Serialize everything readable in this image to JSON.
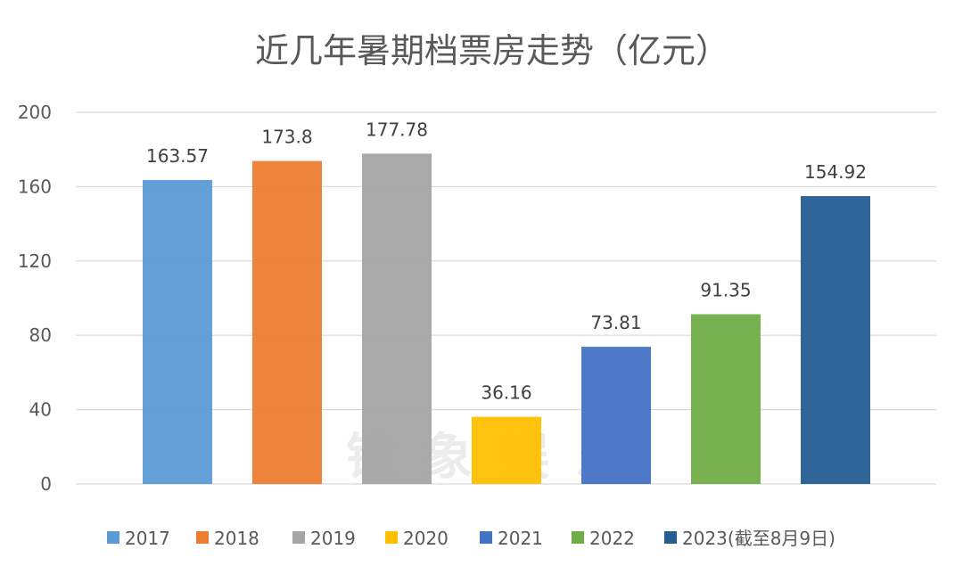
{
  "watermark": "镜象娱乐",
  "chart_data": {
    "type": "bar",
    "title": "近几年暑期档票房走势（亿元）",
    "xlabel": "",
    "ylabel": "",
    "ylim": [
      0,
      200
    ],
    "yticks": [
      0,
      40,
      80,
      120,
      160,
      200
    ],
    "ytick_labels": [
      "0",
      "40",
      "80",
      "120",
      "160",
      "200"
    ],
    "grid": true,
    "legend_position": "bottom",
    "categories": [
      "2017",
      "2018",
      "2019",
      "2020",
      "2021",
      "2022",
      "2023(截至8月9日)"
    ],
    "values": [
      163.57,
      173.8,
      177.78,
      36.16,
      73.81,
      91.35,
      154.92
    ],
    "value_labels": [
      "163.57",
      "173.8",
      "177.78",
      "36.16",
      "73.81",
      "91.35",
      "154.92"
    ],
    "colors": [
      "#5b9bd5",
      "#ed7d31",
      "#a5a5a5",
      "#ffc000",
      "#4472c4",
      "#70ad47",
      "#255e91"
    ]
  }
}
